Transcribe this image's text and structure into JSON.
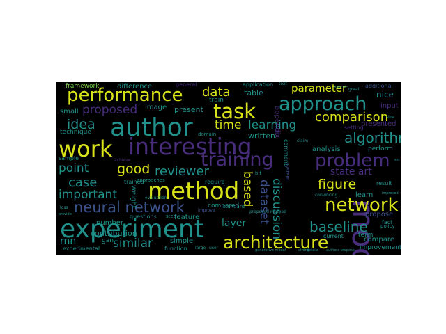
{
  "palette": {
    "yellow": "#d8e219",
    "lime": "#a5db36",
    "green": "#5ec962",
    "teal": "#21918c",
    "cyan": "#2a9d8f",
    "blue": "#3b528b",
    "purple": "#472d7b",
    "violet": "#5b2a86",
    "ltgreen": "#7ad151"
  },
  "words": {
    "model": "model",
    "experiment": "experiment",
    "author": "author",
    "method": "method",
    "interesting": "interesting",
    "work": "work",
    "network": "network",
    "task": "task",
    "approach": "approach",
    "architecture": "architecture",
    "performance": "performance",
    "training": "training",
    "problem": "problem",
    "neural_network": "neural network",
    "algorithm": "algorithm",
    "baseline": "baseline",
    "figure": "figure",
    "comparison": "comparison",
    "good": "good",
    "reviewer": "reviewer",
    "case": "case",
    "idea": "idea",
    "time": "time",
    "learning": "learning",
    "point": "point",
    "important": "important",
    "data": "data",
    "proposed": "proposed",
    "similar": "similar",
    "dataset": "dataset",
    "based": "based",
    "discussion": "discussion",
    "parameter": "parameter",
    "state_art": "state art",
    "layer": "layer",
    "rnn": "rnn",
    "present": "present",
    "contribution": "contribution",
    "table": "table",
    "framework": "framework",
    "difference": "difference",
    "general": "general",
    "application": "application",
    "additional": "additional",
    "nice": "nice",
    "input": "input",
    "train": "train",
    "image": "image",
    "small": "small",
    "technique": "technique",
    "written": "written",
    "presented": "presented",
    "setting": "setting",
    "analysis": "analysis",
    "perform": "perform",
    "result": "result",
    "learn": "learn",
    "propose": "propose",
    "fact": "fact",
    "policy": "policy",
    "compare": "compare",
    "term": "term",
    "improvement": "improvement",
    "current": "current",
    "compared": "compared",
    "feature": "feature",
    "simple": "simple",
    "function": "function",
    "number": "number",
    "questions": "questions",
    "gan": "gan",
    "experimental": "experimental",
    "sample": "sample",
    "trained": "trained",
    "require": "require",
    "weight": "weight",
    "approaches": "approaches",
    "step": "step",
    "standard": "standard",
    "proposed_method": "proposed method",
    "comment": "comment",
    "appendix": "appendix",
    "bit": "bit",
    "system": "system",
    "domain": "domain",
    "improve": "improve",
    "achieve": "achieve",
    "evaluation": "evaluation",
    "text": "text",
    "great": "great",
    "size": "size",
    "claim": "claim",
    "user": "user",
    "large": "large",
    "strong": "strong",
    "convincing": "convincing",
    "generative_model": "generative model",
    "details": "details",
    "improved": "improved",
    "authors_propose": "authors propose",
    "loss": "loss",
    "provide": "provide",
    "specific": "specific",
    "set": "set"
  }
}
